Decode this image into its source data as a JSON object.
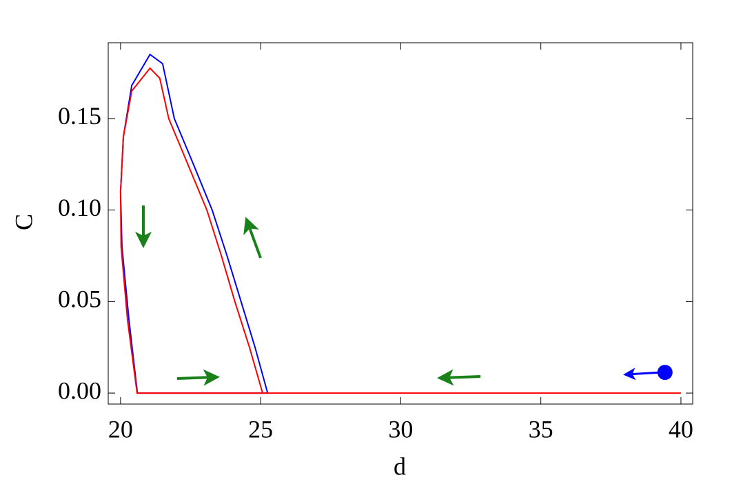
{
  "chart_data": {
    "type": "line",
    "xlabel": "d",
    "ylabel": "C",
    "xlim": [
      19.56,
      40.42
    ],
    "ylim": [
      -0.006,
      0.1914
    ],
    "xticks": [
      20,
      25,
      30,
      35,
      40
    ],
    "yticks": [
      {
        "value": 0,
        "label": "0.00"
      },
      {
        "value": 0.05,
        "label": "0.05"
      },
      {
        "value": 0.1,
        "label": "0.10"
      },
      0.15
    ],
    "series": [
      {
        "color": "#0000ff",
        "x": [
          20.6,
          20.3,
          20.05,
          20.0,
          20.1,
          20.4,
          21.05,
          21.5,
          21.92,
          22.6,
          23.27,
          23.8,
          24.3,
          24.8,
          25.25,
          20.6
        ],
        "values": [
          0,
          0.04,
          0.08,
          0.11,
          0.14,
          0.168,
          0.185,
          0.18,
          0.15,
          0.125,
          0.1,
          0.075,
          0.05,
          0.025,
          0,
          0
        ]
      },
      {
        "color": "#ff0000",
        "x": [
          40,
          20.59,
          20.25,
          20.02,
          20.0,
          20.1,
          20.4,
          21.05,
          21.4,
          21.72,
          22.4,
          23.08,
          23.6,
          24.08,
          24.6,
          25.07
        ],
        "values": [
          0,
          0,
          0.04,
          0.08,
          0.11,
          0.14,
          0.165,
          0.1775,
          0.172,
          0.15,
          0.125,
          0.1,
          0.075,
          0.05,
          0.025,
          0
        ]
      }
    ],
    "point": {
      "x": 39.43,
      "y": 0.0113,
      "color": "#0000ff"
    }
  }
}
